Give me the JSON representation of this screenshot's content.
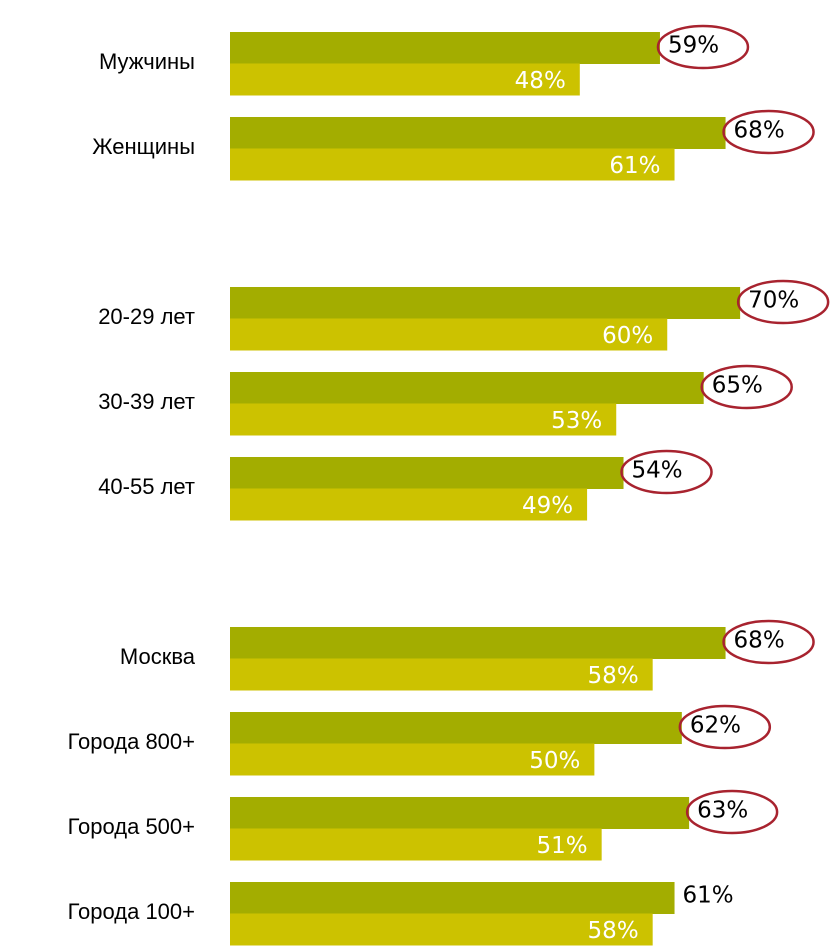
{
  "chart_data": {
    "type": "bar",
    "orientation": "horizontal",
    "categories": [
      "Мужчины",
      "Женщины",
      null,
      "20-29 лет",
      "30-39 лет",
      "40-55 лет",
      null,
      "Москва",
      "Города 800+",
      "Города 500+",
      "Города 100+"
    ],
    "series": [
      {
        "color": "#a3ad00",
        "values": [
          59,
          68,
          null,
          70,
          65,
          54,
          null,
          68,
          62,
          63,
          61
        ],
        "value_labels": [
          "59%",
          "68%",
          null,
          "70%",
          "65%",
          "54%",
          null,
          "68%",
          "62%",
          "63%",
          "61%"
        ],
        "circled": [
          true,
          true,
          null,
          true,
          true,
          true,
          null,
          true,
          true,
          true,
          false
        ]
      },
      {
        "color": "#ccc200",
        "values": [
          48,
          61,
          null,
          60,
          53,
          49,
          null,
          58,
          50,
          51,
          58
        ],
        "value_labels": [
          "48%",
          "61%",
          null,
          "60%",
          "53%",
          "49%",
          null,
          "58%",
          "50%",
          "51%",
          "58%"
        ]
      }
    ],
    "xlim": [
      0,
      80
    ]
  }
}
